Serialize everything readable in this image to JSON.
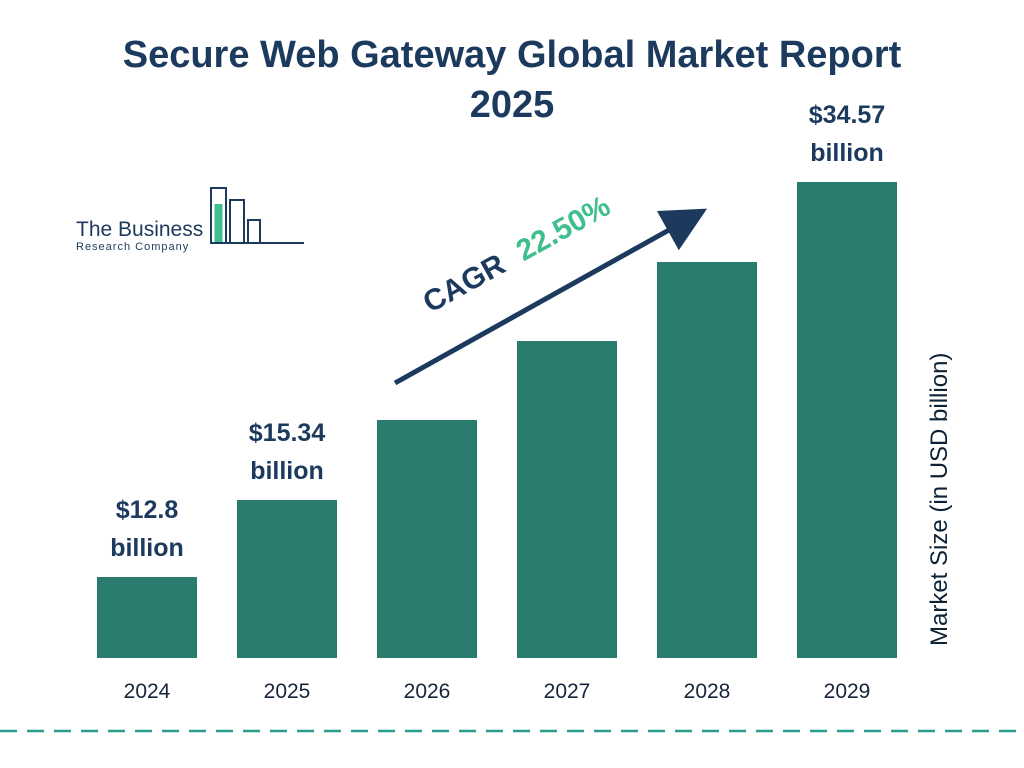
{
  "title": {
    "line1": "Secure Web Gateway Global Market Report",
    "line2": "2025"
  },
  "logo": {
    "line1": "The Business",
    "line2": "Research Company"
  },
  "cagr": {
    "prefix": "CAGR",
    "value": "22.50%"
  },
  "ylabel": "Market Size (in USD billion)",
  "colors": {
    "navy": "#1c3a5e",
    "bar": "#2a7d6e",
    "green": "#3fbf8e",
    "dash": "#2a9d8f",
    "year_text": "#16253b"
  },
  "chart_data": {
    "type": "bar",
    "title": "Secure Web Gateway Global Market Report 2025",
    "xlabel": "",
    "ylabel": "Market Size (in USD billion)",
    "categories": [
      "2024",
      "2025",
      "2026",
      "2027",
      "2028",
      "2029"
    ],
    "values": [
      12.8,
      15.34,
      18.79,
      23.02,
      28.2,
      34.57
    ],
    "value_labels": [
      [
        "$12.8",
        "billion"
      ],
      [
        "$15.34",
        "billion"
      ],
      null,
      null,
      null,
      [
        "$34.57",
        "billion"
      ]
    ],
    "bar_height_pct": [
      17,
      33.2,
      50,
      66.6,
      83.2,
      100
    ],
    "cagr_percent": 22.5,
    "legend": "none",
    "grid": false
  }
}
